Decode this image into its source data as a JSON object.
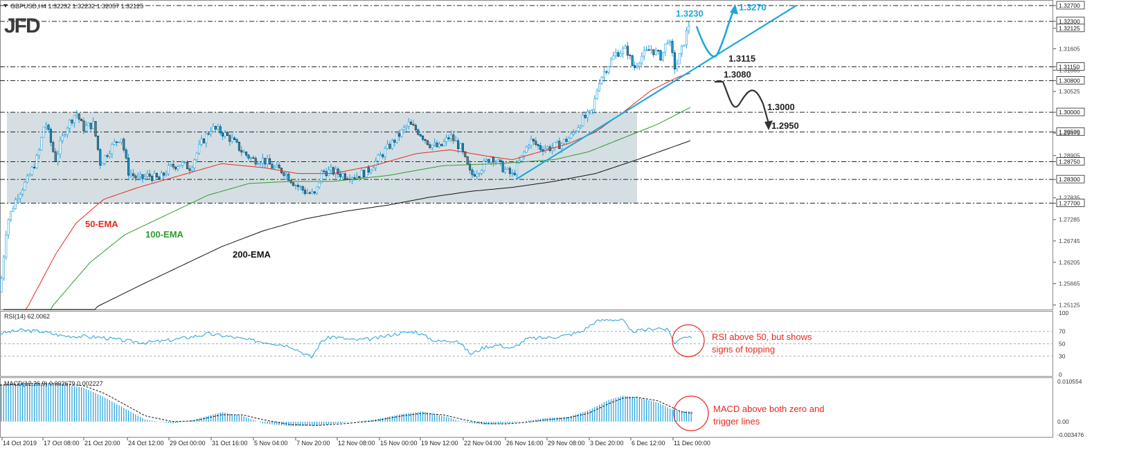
{
  "header": {
    "symbol_info": "GBPUSD,H4 1.32232 1.32232 1.32057 1.32125",
    "logo": "JFD"
  },
  "chart_data": {
    "type": "candlestick",
    "symbol": "GBPUSD",
    "timeframe": "H4",
    "ohlc_header": {
      "open": 1.32232,
      "high": 1.32232,
      "low": 1.32057,
      "close": 1.32125
    },
    "price_axis": {
      "range": [
        1.2508,
        1.3277
      ],
      "ticks": [
        "1.32700",
        "1.32300",
        "1.32125",
        "1.31605",
        "1.31150",
        "1.31065",
        "1.30800",
        "1.30525",
        "1.30000",
        "1.29500",
        "1.29475",
        "1.28905",
        "1.28750",
        "1.28300",
        "1.27835",
        "1.27700",
        "1.27285",
        "1.26745",
        "1.26205",
        "1.25665",
        "1.25125"
      ]
    },
    "time_axis": {
      "labels": [
        "14 Oct 2019",
        "17 Oct 08:00",
        "21 Oct 20:00",
        "24 Oct 12:00",
        "29 Oct 00:00",
        "31 Oct 16:00",
        "5 Nov 04:00",
        "7 Nov 20:00",
        "12 Nov 08:00",
        "15 Nov 00:00",
        "19 Nov 12:00",
        "22 Nov 04:00",
        "26 Nov 16:00",
        "29 Nov 08:00",
        "3 Dec 20:00",
        "6 Dec 12:00",
        "11 Dec 00:00"
      ]
    },
    "price_path": [
      [
        0,
        1.2545
      ],
      [
        10,
        1.272
      ],
      [
        25,
        1.279
      ],
      [
        40,
        1.283
      ],
      [
        55,
        1.289
      ],
      [
        65,
        1.298
      ],
      [
        80,
        1.288
      ],
      [
        95,
        1.296
      ],
      [
        110,
        1.3
      ],
      [
        120,
        1.296
      ],
      [
        135,
        1.297
      ],
      [
        145,
        1.287
      ],
      [
        160,
        1.291
      ],
      [
        175,
        1.294
      ],
      [
        185,
        1.285
      ],
      [
        200,
        1.283
      ],
      [
        215,
        1.284
      ],
      [
        230,
        1.283
      ],
      [
        245,
        1.286
      ],
      [
        260,
        1.287
      ],
      [
        275,
        1.286
      ],
      [
        290,
        1.292
      ],
      [
        305,
        1.296
      ],
      [
        320,
        1.295
      ],
      [
        335,
        1.293
      ],
      [
        350,
        1.29
      ],
      [
        365,
        1.288
      ],
      [
        380,
        1.288
      ],
      [
        395,
        1.286
      ],
      [
        410,
        1.285
      ],
      [
        425,
        1.282
      ],
      [
        440,
        1.28
      ],
      [
        455,
        1.279
      ],
      [
        465,
        1.285
      ],
      [
        480,
        1.285
      ],
      [
        500,
        1.284
      ],
      [
        515,
        1.284
      ],
      [
        530,
        1.285
      ],
      [
        545,
        1.288
      ],
      [
        560,
        1.291
      ],
      [
        575,
        1.294
      ],
      [
        590,
        1.297
      ],
      [
        605,
        1.295
      ],
      [
        620,
        1.292
      ],
      [
        635,
        1.291
      ],
      [
        650,
        1.294
      ],
      [
        665,
        1.291
      ],
      [
        680,
        1.284
      ],
      [
        695,
        1.286
      ],
      [
        710,
        1.289
      ],
      [
        725,
        1.286
      ],
      [
        740,
        1.284
      ],
      [
        755,
        1.289
      ],
      [
        765,
        1.293
      ],
      [
        780,
        1.291
      ],
      [
        795,
        1.291
      ],
      [
        810,
        1.292
      ],
      [
        825,
        1.294
      ],
      [
        840,
        1.298
      ],
      [
        855,
        1.3
      ],
      [
        865,
        1.308
      ],
      [
        875,
        1.311
      ],
      [
        890,
        1.315
      ],
      [
        905,
        1.316
      ],
      [
        915,
        1.311
      ],
      [
        925,
        1.314
      ],
      [
        940,
        1.316
      ],
      [
        955,
        1.314
      ],
      [
        965,
        1.319
      ],
      [
        975,
        1.311
      ],
      [
        985,
        1.316
      ],
      [
        995,
        1.3223
      ],
      [
        1000,
        1.3212
      ]
    ],
    "ema_50": [
      [
        5,
        1.235
      ],
      [
        40,
        1.2508
      ],
      [
        80,
        1.264
      ],
      [
        110,
        1.272
      ],
      [
        150,
        1.278
      ],
      [
        200,
        1.281
      ],
      [
        260,
        1.284
      ],
      [
        320,
        1.287
      ],
      [
        380,
        1.286
      ],
      [
        430,
        1.2845
      ],
      [
        480,
        1.2845
      ],
      [
        540,
        1.2865
      ],
      [
        600,
        1.2895
      ],
      [
        650,
        1.2905
      ],
      [
        700,
        1.289
      ],
      [
        740,
        1.288
      ],
      [
        780,
        1.29
      ],
      [
        820,
        1.292
      ],
      [
        860,
        1.295
      ],
      [
        900,
        1.3
      ],
      [
        940,
        1.3055
      ],
      [
        980,
        1.309
      ],
      [
        1000,
        1.31
      ]
    ],
    "ema_100": [
      [
        5,
        1.23
      ],
      [
        75,
        1.2508
      ],
      [
        130,
        1.262
      ],
      [
        180,
        1.269
      ],
      [
        240,
        1.274
      ],
      [
        300,
        1.279
      ],
      [
        360,
        1.282
      ],
      [
        420,
        1.2825
      ],
      [
        480,
        1.2825
      ],
      [
        560,
        1.284
      ],
      [
        640,
        1.2865
      ],
      [
        720,
        1.287
      ],
      [
        800,
        1.288
      ],
      [
        850,
        1.29
      ],
      [
        900,
        1.2935
      ],
      [
        950,
        1.297
      ],
      [
        1000,
        1.3015
      ]
    ],
    "ema_200": [
      [
        5,
        1.22
      ],
      [
        140,
        1.2508
      ],
      [
        200,
        1.256
      ],
      [
        260,
        1.261
      ],
      [
        320,
        1.266
      ],
      [
        380,
        1.27
      ],
      [
        440,
        1.273
      ],
      [
        500,
        1.275
      ],
      [
        560,
        1.2765
      ],
      [
        620,
        1.2785
      ],
      [
        680,
        1.28
      ],
      [
        740,
        1.281
      ],
      [
        800,
        1.2825
      ],
      [
        860,
        1.2845
      ],
      [
        920,
        1.288
      ],
      [
        1000,
        1.293
      ]
    ],
    "annotations": {
      "ema50_label": "50-EMA",
      "ema100_label": "100-EMA",
      "ema200_label": "200-EMA",
      "level_1_3230": "1.3230",
      "level_1_3270": "1.3270",
      "level_1_3115": "1.3115",
      "level_1_3080": "1.3080",
      "level_1_3000": "1.3000",
      "level_1_2950": "1.2950"
    },
    "horizontal_levels": [
      1.327,
      1.323,
      1.3115,
      1.308,
      1.3,
      1.295,
      1.2875,
      1.283,
      1.277
    ],
    "range_box": {
      "from": "14 Oct 2019",
      "to": "6 Dec 12:00",
      "top": 1.3,
      "bottom": 1.277
    },
    "trend_line": {
      "start": [
        745,
        1.283
      ],
      "end": [
        1150,
        1.327
      ]
    },
    "rsi": {
      "label": "RSI(14) 62.0062",
      "value": 62.0062,
      "levels": [
        100,
        70,
        50,
        30,
        0
      ],
      "path": [
        [
          0,
          67
        ],
        [
          30,
          72
        ],
        [
          60,
          70
        ],
        [
          90,
          63
        ],
        [
          120,
          62
        ],
        [
          150,
          60
        ],
        [
          180,
          55
        ],
        [
          210,
          52
        ],
        [
          240,
          55
        ],
        [
          270,
          60
        ],
        [
          300,
          66
        ],
        [
          330,
          62
        ],
        [
          360,
          56
        ],
        [
          390,
          52
        ],
        [
          420,
          46
        ],
        [
          450,
          28
        ],
        [
          465,
          55
        ],
        [
          480,
          62
        ],
        [
          510,
          56
        ],
        [
          540,
          58
        ],
        [
          570,
          66
        ],
        [
          600,
          70
        ],
        [
          630,
          54
        ],
        [
          660,
          56
        ],
        [
          680,
          33
        ],
        [
          700,
          45
        ],
        [
          720,
          48
        ],
        [
          740,
          42
        ],
        [
          760,
          58
        ],
        [
          790,
          60
        ],
        [
          820,
          64
        ],
        [
          840,
          70
        ],
        [
          860,
          86
        ],
        [
          880,
          90
        ],
        [
          900,
          88
        ],
        [
          910,
          70
        ],
        [
          930,
          72
        ],
        [
          950,
          76
        ],
        [
          965,
          72
        ],
        [
          975,
          50
        ],
        [
          985,
          62
        ],
        [
          1000,
          62
        ]
      ],
      "note": "RSI above 50, but shows\nsigns of topping"
    },
    "macd": {
      "label": "MACD(12,26,9) 0.002679 0.002227",
      "main": 0.002679,
      "signal": 0.002227,
      "ticks": [
        "0.010554",
        "0.00",
        "-0.003476"
      ],
      "hist_path": [
        [
          0,
          0.0098
        ],
        [
          40,
          0.0102
        ],
        [
          80,
          0.01
        ],
        [
          120,
          0.009
        ],
        [
          150,
          0.0065
        ],
        [
          180,
          0.0035
        ],
        [
          210,
          0.0005
        ],
        [
          250,
          -0.0005
        ],
        [
          280,
          0.0005
        ],
        [
          320,
          0.0025
        ],
        [
          350,
          0.0015
        ],
        [
          380,
          -0.0005
        ],
        [
          420,
          -0.0012
        ],
        [
          460,
          -0.001
        ],
        [
          500,
          -0.0002
        ],
        [
          540,
          0.0005
        ],
        [
          580,
          0.002
        ],
        [
          610,
          0.0027
        ],
        [
          640,
          0.0015
        ],
        [
          670,
          -0.0002
        ],
        [
          700,
          -0.0008
        ],
        [
          730,
          -0.0006
        ],
        [
          760,
          0.0002
        ],
        [
          790,
          0.001
        ],
        [
          820,
          0.0012
        ],
        [
          850,
          0.003
        ],
        [
          880,
          0.0058
        ],
        [
          900,
          0.0068
        ],
        [
          920,
          0.0064
        ],
        [
          950,
          0.005
        ],
        [
          970,
          0.0032
        ],
        [
          985,
          0.0028
        ],
        [
          1000,
          0.0027
        ]
      ],
      "signal_path": [
        [
          0,
          0.0096
        ],
        [
          40,
          0.01
        ],
        [
          80,
          0.01
        ],
        [
          120,
          0.0095
        ],
        [
          150,
          0.0075
        ],
        [
          180,
          0.0045
        ],
        [
          210,
          0.0015
        ],
        [
          250,
          0.0
        ],
        [
          280,
          0.0002
        ],
        [
          320,
          0.0018
        ],
        [
          350,
          0.0018
        ],
        [
          380,
          0.0005
        ],
        [
          420,
          -0.0008
        ],
        [
          460,
          -0.001
        ],
        [
          500,
          -0.0005
        ],
        [
          540,
          0.0002
        ],
        [
          580,
          0.0015
        ],
        [
          610,
          0.0022
        ],
        [
          640,
          0.0018
        ],
        [
          670,
          0.0005
        ],
        [
          700,
          -0.0005
        ],
        [
          730,
          -0.0006
        ],
        [
          760,
          -0.0002
        ],
        [
          790,
          0.0005
        ],
        [
          820,
          0.001
        ],
        [
          850,
          0.0022
        ],
        [
          880,
          0.0048
        ],
        [
          900,
          0.0062
        ],
        [
          920,
          0.0064
        ],
        [
          950,
          0.0055
        ],
        [
          970,
          0.0038
        ],
        [
          985,
          0.0025
        ],
        [
          1000,
          0.0022
        ]
      ],
      "note": "MACD above both zero and\ntrigger lines"
    },
    "colors": {
      "candle": "#1e9fdc",
      "ema50": "#e8281e",
      "ema100": "#2e9a2e",
      "ema200": "#111111",
      "trend": "#1ea7dc",
      "arrow_up": "#1ea7dc",
      "arrow_down": "#333333",
      "box": "#c7d4da",
      "note": "#e8281e"
    }
  }
}
